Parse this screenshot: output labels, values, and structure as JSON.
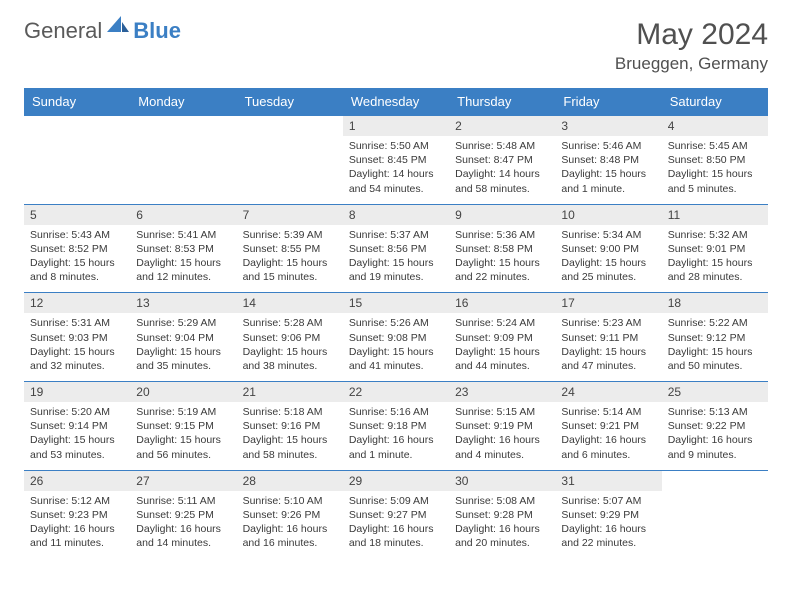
{
  "brand": {
    "general": "General",
    "blue": "Blue"
  },
  "title": "May 2024",
  "location": "Brueggen, Germany",
  "dows": [
    "Sunday",
    "Monday",
    "Tuesday",
    "Wednesday",
    "Thursday",
    "Friday",
    "Saturday"
  ],
  "colors": {
    "accent": "#3b7fc4",
    "dayhead_bg": "#ececec",
    "page_bg": "#ffffff",
    "text": "#3a3a3a",
    "title_text": "#505050"
  },
  "weeks": [
    [
      {
        "n": "",
        "sr": "",
        "ss": "",
        "dl": ""
      },
      {
        "n": "",
        "sr": "",
        "ss": "",
        "dl": ""
      },
      {
        "n": "",
        "sr": "",
        "ss": "",
        "dl": ""
      },
      {
        "n": "1",
        "sr": "Sunrise: 5:50 AM",
        "ss": "Sunset: 8:45 PM",
        "dl": "Daylight: 14 hours and 54 minutes."
      },
      {
        "n": "2",
        "sr": "Sunrise: 5:48 AM",
        "ss": "Sunset: 8:47 PM",
        "dl": "Daylight: 14 hours and 58 minutes."
      },
      {
        "n": "3",
        "sr": "Sunrise: 5:46 AM",
        "ss": "Sunset: 8:48 PM",
        "dl": "Daylight: 15 hours and 1 minute."
      },
      {
        "n": "4",
        "sr": "Sunrise: 5:45 AM",
        "ss": "Sunset: 8:50 PM",
        "dl": "Daylight: 15 hours and 5 minutes."
      }
    ],
    [
      {
        "n": "5",
        "sr": "Sunrise: 5:43 AM",
        "ss": "Sunset: 8:52 PM",
        "dl": "Daylight: 15 hours and 8 minutes."
      },
      {
        "n": "6",
        "sr": "Sunrise: 5:41 AM",
        "ss": "Sunset: 8:53 PM",
        "dl": "Daylight: 15 hours and 12 minutes."
      },
      {
        "n": "7",
        "sr": "Sunrise: 5:39 AM",
        "ss": "Sunset: 8:55 PM",
        "dl": "Daylight: 15 hours and 15 minutes."
      },
      {
        "n": "8",
        "sr": "Sunrise: 5:37 AM",
        "ss": "Sunset: 8:56 PM",
        "dl": "Daylight: 15 hours and 19 minutes."
      },
      {
        "n": "9",
        "sr": "Sunrise: 5:36 AM",
        "ss": "Sunset: 8:58 PM",
        "dl": "Daylight: 15 hours and 22 minutes."
      },
      {
        "n": "10",
        "sr": "Sunrise: 5:34 AM",
        "ss": "Sunset: 9:00 PM",
        "dl": "Daylight: 15 hours and 25 minutes."
      },
      {
        "n": "11",
        "sr": "Sunrise: 5:32 AM",
        "ss": "Sunset: 9:01 PM",
        "dl": "Daylight: 15 hours and 28 minutes."
      }
    ],
    [
      {
        "n": "12",
        "sr": "Sunrise: 5:31 AM",
        "ss": "Sunset: 9:03 PM",
        "dl": "Daylight: 15 hours and 32 minutes."
      },
      {
        "n": "13",
        "sr": "Sunrise: 5:29 AM",
        "ss": "Sunset: 9:04 PM",
        "dl": "Daylight: 15 hours and 35 minutes."
      },
      {
        "n": "14",
        "sr": "Sunrise: 5:28 AM",
        "ss": "Sunset: 9:06 PM",
        "dl": "Daylight: 15 hours and 38 minutes."
      },
      {
        "n": "15",
        "sr": "Sunrise: 5:26 AM",
        "ss": "Sunset: 9:08 PM",
        "dl": "Daylight: 15 hours and 41 minutes."
      },
      {
        "n": "16",
        "sr": "Sunrise: 5:24 AM",
        "ss": "Sunset: 9:09 PM",
        "dl": "Daylight: 15 hours and 44 minutes."
      },
      {
        "n": "17",
        "sr": "Sunrise: 5:23 AM",
        "ss": "Sunset: 9:11 PM",
        "dl": "Daylight: 15 hours and 47 minutes."
      },
      {
        "n": "18",
        "sr": "Sunrise: 5:22 AM",
        "ss": "Sunset: 9:12 PM",
        "dl": "Daylight: 15 hours and 50 minutes."
      }
    ],
    [
      {
        "n": "19",
        "sr": "Sunrise: 5:20 AM",
        "ss": "Sunset: 9:14 PM",
        "dl": "Daylight: 15 hours and 53 minutes."
      },
      {
        "n": "20",
        "sr": "Sunrise: 5:19 AM",
        "ss": "Sunset: 9:15 PM",
        "dl": "Daylight: 15 hours and 56 minutes."
      },
      {
        "n": "21",
        "sr": "Sunrise: 5:18 AM",
        "ss": "Sunset: 9:16 PM",
        "dl": "Daylight: 15 hours and 58 minutes."
      },
      {
        "n": "22",
        "sr": "Sunrise: 5:16 AM",
        "ss": "Sunset: 9:18 PM",
        "dl": "Daylight: 16 hours and 1 minute."
      },
      {
        "n": "23",
        "sr": "Sunrise: 5:15 AM",
        "ss": "Sunset: 9:19 PM",
        "dl": "Daylight: 16 hours and 4 minutes."
      },
      {
        "n": "24",
        "sr": "Sunrise: 5:14 AM",
        "ss": "Sunset: 9:21 PM",
        "dl": "Daylight: 16 hours and 6 minutes."
      },
      {
        "n": "25",
        "sr": "Sunrise: 5:13 AM",
        "ss": "Sunset: 9:22 PM",
        "dl": "Daylight: 16 hours and 9 minutes."
      }
    ],
    [
      {
        "n": "26",
        "sr": "Sunrise: 5:12 AM",
        "ss": "Sunset: 9:23 PM",
        "dl": "Daylight: 16 hours and 11 minutes."
      },
      {
        "n": "27",
        "sr": "Sunrise: 5:11 AM",
        "ss": "Sunset: 9:25 PM",
        "dl": "Daylight: 16 hours and 14 minutes."
      },
      {
        "n": "28",
        "sr": "Sunrise: 5:10 AM",
        "ss": "Sunset: 9:26 PM",
        "dl": "Daylight: 16 hours and 16 minutes."
      },
      {
        "n": "29",
        "sr": "Sunrise: 5:09 AM",
        "ss": "Sunset: 9:27 PM",
        "dl": "Daylight: 16 hours and 18 minutes."
      },
      {
        "n": "30",
        "sr": "Sunrise: 5:08 AM",
        "ss": "Sunset: 9:28 PM",
        "dl": "Daylight: 16 hours and 20 minutes."
      },
      {
        "n": "31",
        "sr": "Sunrise: 5:07 AM",
        "ss": "Sunset: 9:29 PM",
        "dl": "Daylight: 16 hours and 22 minutes."
      },
      {
        "n": "",
        "sr": "",
        "ss": "",
        "dl": ""
      }
    ]
  ]
}
